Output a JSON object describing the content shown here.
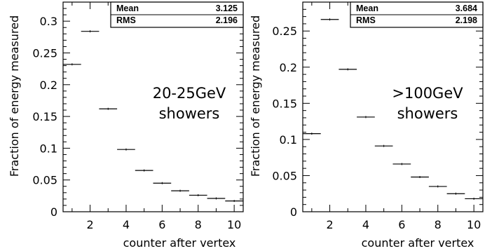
{
  "chart_data": [
    {
      "type": "bar",
      "title": "",
      "xlabel": "counter after vertex",
      "ylabel": "Fraction of energy measured",
      "xlim": [
        0.5,
        10.5
      ],
      "ylim": [
        0,
        0.33
      ],
      "xticks": [
        "2",
        "4",
        "6",
        "8",
        "10"
      ],
      "yticks": [
        "0",
        "0.05",
        "0.1",
        "0.15",
        "0.2",
        "0.25",
        "0.3"
      ],
      "annotation_lines": [
        "20-25GeV",
        "showers"
      ],
      "stats": [
        {
          "label": "Mean",
          "value": "3.125"
        },
        {
          "label": "RMS",
          "value": "2.196"
        }
      ],
      "x": [
        1,
        2,
        3,
        4,
        5,
        6,
        7,
        8,
        9,
        10
      ],
      "values": [
        0.232,
        0.284,
        0.162,
        0.098,
        0.065,
        0.045,
        0.033,
        0.026,
        0.021,
        0.017
      ]
    },
    {
      "type": "bar",
      "title": "",
      "xlabel": "counter after vertex",
      "ylabel": "Fraction of energy measured",
      "xlim": [
        0.5,
        10.5
      ],
      "ylim": [
        0,
        0.29
      ],
      "xticks": [
        "2",
        "4",
        "6",
        "8",
        "10"
      ],
      "yticks": [
        "0",
        "0.05",
        "0.1",
        "0.15",
        "0.2",
        "0.25"
      ],
      "annotation_lines": [
        ">100GeV",
        "showers"
      ],
      "stats": [
        {
          "label": "Mean",
          "value": "3.684"
        },
        {
          "label": "RMS",
          "value": "2.198"
        }
      ],
      "x": [
        1,
        2,
        3,
        4,
        5,
        6,
        7,
        8,
        9,
        10
      ],
      "values": [
        0.108,
        0.266,
        0.197,
        0.131,
        0.091,
        0.066,
        0.048,
        0.035,
        0.025,
        0.018
      ]
    }
  ]
}
